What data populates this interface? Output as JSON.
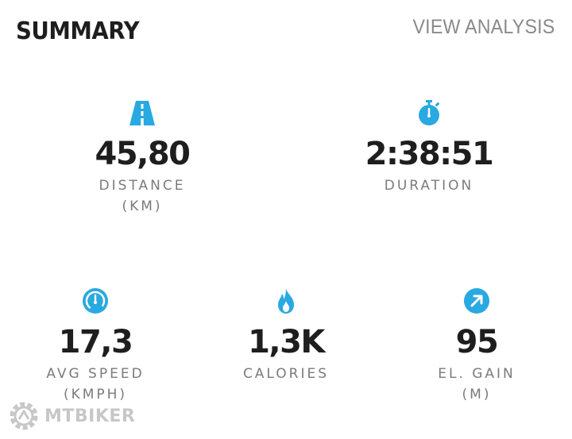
{
  "header": {
    "title": "SUMMARY",
    "view_analysis_label": "VIEW ANALYSIS"
  },
  "colors": {
    "accent": "#29a9e1",
    "value_text": "#1e1e1e",
    "label_text": "#7b7b7b",
    "link_text": "#8a8a8a"
  },
  "stats": {
    "distance": {
      "icon": "road-icon",
      "value": "45,80",
      "label": "DISTANCE",
      "unit": "(KM)"
    },
    "duration": {
      "icon": "stopwatch-icon",
      "value": "2:38:51",
      "label": "DURATION"
    },
    "avg_speed": {
      "icon": "speedometer-icon",
      "value": "17,3",
      "label": "AVG SPEED",
      "unit": "(KMPH)"
    },
    "calories": {
      "icon": "flame-icon",
      "value": "1,3K",
      "label": "CALORIES"
    },
    "el_gain": {
      "icon": "arrow-up-right-icon",
      "value": "95",
      "label": "EL. GAIN",
      "unit": "(M)"
    }
  },
  "watermark": {
    "icon": "gear-logo-icon",
    "text": "MTBIKER"
  }
}
